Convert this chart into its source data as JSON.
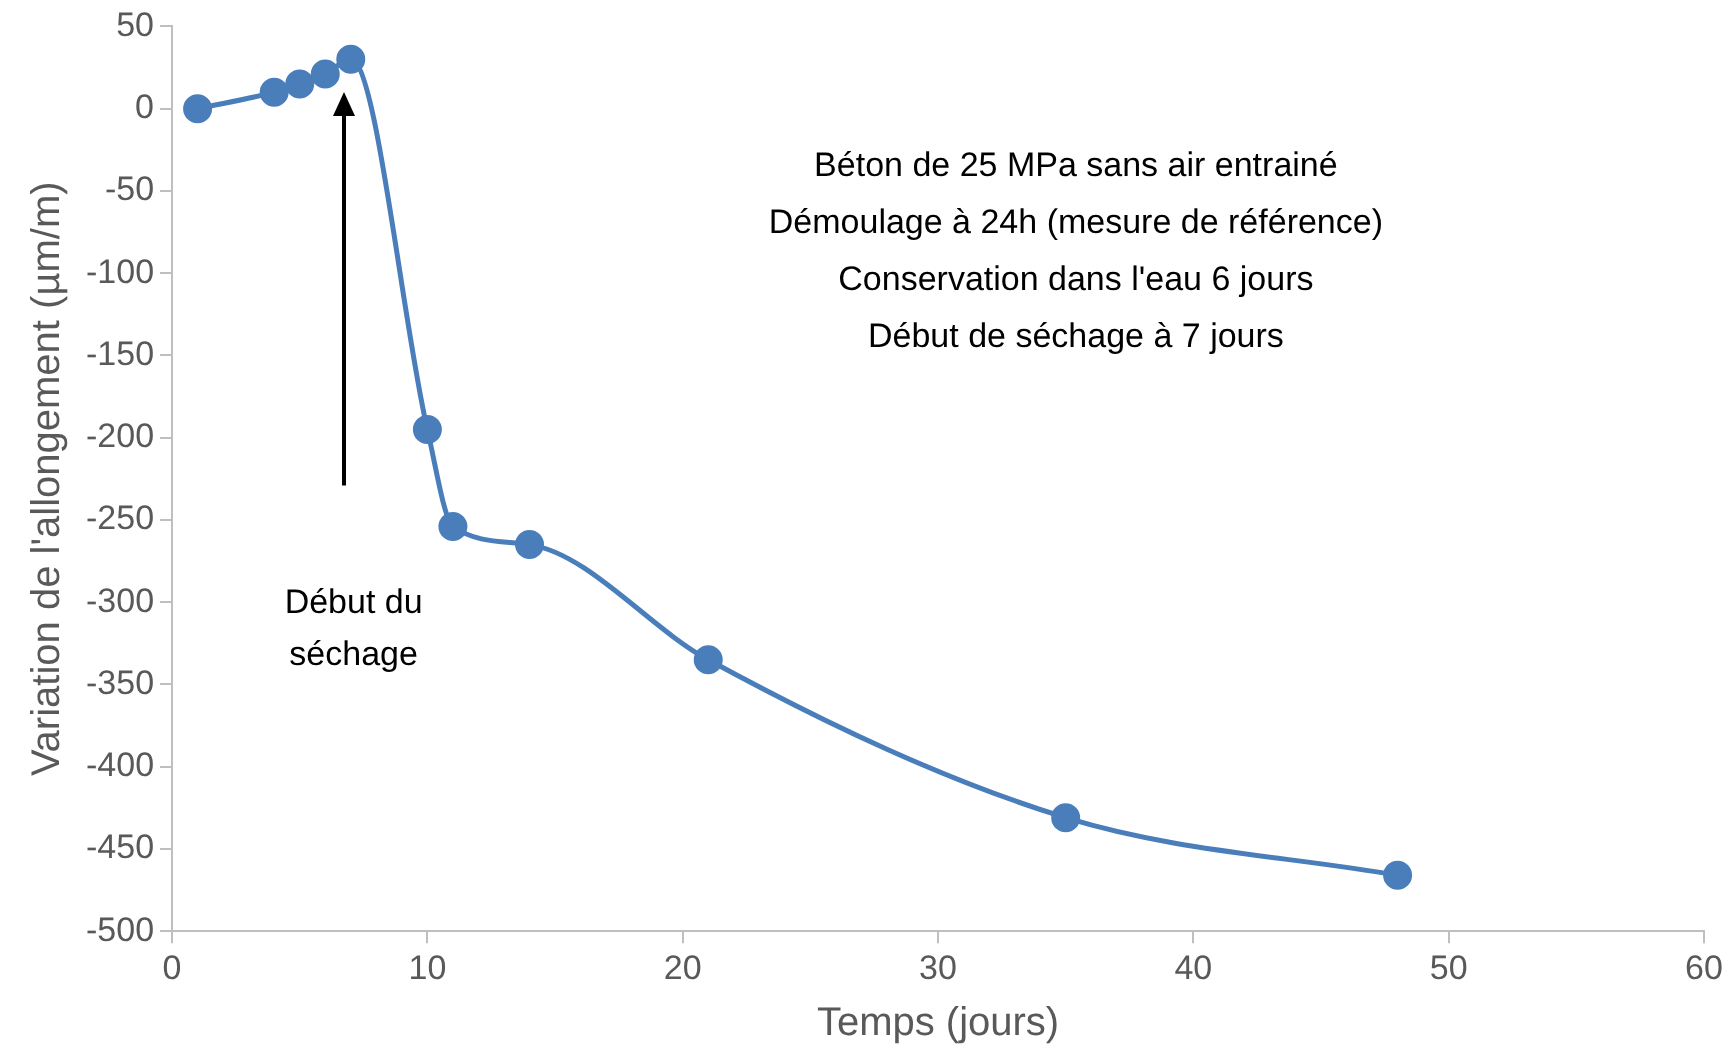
{
  "chart_data": {
    "type": "line",
    "xlabel": "Temps (jours)",
    "ylabel": "Variation de l'allongement (µm/m)",
    "x": [
      1,
      4,
      5,
      6,
      7,
      10,
      11,
      14,
      21,
      35,
      48
    ],
    "series": [
      {
        "color": "#4a7ebb",
        "values": [
          0,
          10,
          15,
          21,
          30,
          -195,
          -254,
          -265,
          -335,
          -431,
          -466
        ]
      }
    ],
    "xlim": [
      0,
      60
    ],
    "xticks": [
      0,
      10,
      20,
      30,
      40,
      50,
      60
    ],
    "ylim": [
      -500,
      50
    ],
    "yticks": [
      -500,
      -450,
      -400,
      -350,
      -300,
      -250,
      -200,
      -150,
      -100,
      -50,
      0,
      50
    ],
    "grid": false,
    "legend": false,
    "marker": "circle",
    "line_style": "solid",
    "annotations": [
      "Béton de 25 MPa sans air entrainé",
      "Démoulage à 24h (mesure de référence)",
      "Conservation dans l'eau 6 jours",
      "Début de séchage à 7 jours",
      "Début du séchage"
    ]
  }
}
